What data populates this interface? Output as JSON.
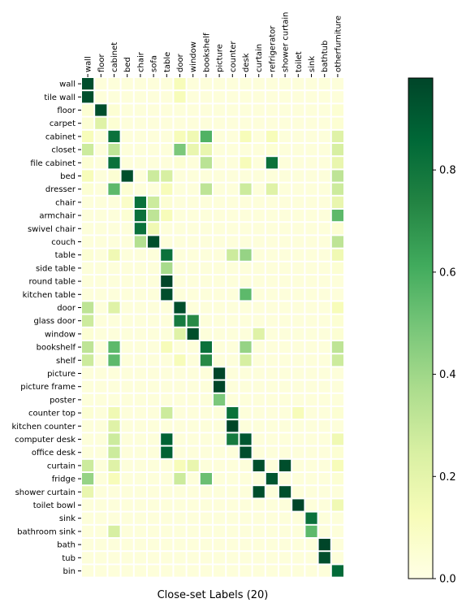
{
  "chart_data": {
    "type": "heatmap",
    "xlabel": "Close-set Labels (20)",
    "x_labels": [
      "wall",
      "floor",
      "cabinet",
      "bed",
      "chair",
      "sofa",
      "table",
      "door",
      "window",
      "bookshelf",
      "picture",
      "counter",
      "desk",
      "curtain",
      "refrigerator",
      "shower curtain",
      "toilet",
      "sink",
      "bathtub",
      "otherfurniture"
    ],
    "y_labels": [
      "wall",
      "tile wall",
      "floor",
      "carpet",
      "cabinet",
      "closet",
      "file cabinet",
      "bed",
      "dresser",
      "chair",
      "armchair",
      "swivel chair",
      "couch",
      "table",
      "side table",
      "round table",
      "kitchen table",
      "door",
      "glass door",
      "window",
      "bookshelf",
      "shelf",
      "picture",
      "picture frame",
      "poster",
      "counter top",
      "kitchen counter",
      "computer desk",
      "office desk",
      "curtain",
      "fridge",
      "shower curtain",
      "toilet bowl",
      "sink",
      "bathroom sink",
      "bath",
      "tub",
      "bin"
    ],
    "values": [
      [
        0.95,
        0.03,
        0.03,
        0.03,
        0.03,
        0.03,
        0.03,
        0.12,
        0.03,
        0.03,
        0.03,
        0.03,
        0.03,
        0.03,
        0.03,
        0.03,
        0.03,
        0.03,
        0.03,
        0.03
      ],
      [
        0.95,
        0.03,
        0.03,
        0.03,
        0.03,
        0.03,
        0.03,
        0.12,
        0.03,
        0.03,
        0.03,
        0.03,
        0.03,
        0.03,
        0.03,
        0.03,
        0.03,
        0.03,
        0.03,
        0.03
      ],
      [
        0.05,
        0.95,
        0.05,
        0.03,
        0.03,
        0.03,
        0.03,
        0.03,
        0.03,
        0.03,
        0.03,
        0.03,
        0.03,
        0.03,
        0.03,
        0.03,
        0.03,
        0.03,
        0.03,
        0.05
      ],
      [
        0.05,
        0.22,
        0.05,
        0.03,
        0.03,
        0.03,
        0.03,
        0.03,
        0.03,
        0.03,
        0.03,
        0.03,
        0.03,
        0.03,
        0.03,
        0.03,
        0.03,
        0.03,
        0.03,
        0.05
      ],
      [
        0.12,
        0.03,
        0.82,
        0.03,
        0.03,
        0.03,
        0.03,
        0.12,
        0.15,
        0.58,
        0.03,
        0.03,
        0.12,
        0.03,
        0.12,
        0.03,
        0.03,
        0.03,
        0.03,
        0.22
      ],
      [
        0.28,
        0.03,
        0.32,
        0.03,
        0.03,
        0.03,
        0.03,
        0.48,
        0.18,
        0.18,
        0.03,
        0.03,
        0.03,
        0.03,
        0.05,
        0.03,
        0.03,
        0.03,
        0.03,
        0.25
      ],
      [
        0.05,
        0.03,
        0.82,
        0.03,
        0.03,
        0.03,
        0.03,
        0.05,
        0.03,
        0.33,
        0.03,
        0.03,
        0.12,
        0.03,
        0.82,
        0.03,
        0.03,
        0.03,
        0.03,
        0.18
      ],
      [
        0.12,
        0.03,
        0.05,
        0.95,
        0.03,
        0.28,
        0.25,
        0.03,
        0.03,
        0.03,
        0.03,
        0.03,
        0.03,
        0.03,
        0.03,
        0.03,
        0.03,
        0.03,
        0.03,
        0.32
      ],
      [
        0.05,
        0.03,
        0.55,
        0.05,
        0.03,
        0.03,
        0.12,
        0.03,
        0.03,
        0.32,
        0.03,
        0.03,
        0.28,
        0.03,
        0.22,
        0.03,
        0.03,
        0.03,
        0.03,
        0.28
      ],
      [
        0.03,
        0.03,
        0.03,
        0.08,
        0.82,
        0.28,
        0.05,
        0.03,
        0.03,
        0.03,
        0.03,
        0.03,
        0.03,
        0.03,
        0.03,
        0.03,
        0.03,
        0.03,
        0.03,
        0.18
      ],
      [
        0.03,
        0.03,
        0.03,
        0.05,
        0.82,
        0.32,
        0.12,
        0.03,
        0.03,
        0.03,
        0.03,
        0.03,
        0.03,
        0.03,
        0.03,
        0.03,
        0.03,
        0.03,
        0.03,
        0.55
      ],
      [
        0.03,
        0.03,
        0.03,
        0.03,
        0.82,
        0.15,
        0.03,
        0.03,
        0.03,
        0.03,
        0.03,
        0.03,
        0.03,
        0.03,
        0.03,
        0.03,
        0.03,
        0.03,
        0.03,
        0.05
      ],
      [
        0.03,
        0.03,
        0.03,
        0.03,
        0.35,
        0.95,
        0.03,
        0.03,
        0.03,
        0.03,
        0.03,
        0.03,
        0.03,
        0.03,
        0.03,
        0.03,
        0.03,
        0.03,
        0.03,
        0.32
      ],
      [
        0.05,
        0.03,
        0.15,
        0.03,
        0.03,
        0.03,
        0.82,
        0.03,
        0.03,
        0.03,
        0.03,
        0.28,
        0.42,
        0.03,
        0.03,
        0.03,
        0.03,
        0.03,
        0.03,
        0.15
      ],
      [
        0.03,
        0.03,
        0.03,
        0.03,
        0.03,
        0.03,
        0.38,
        0.03,
        0.03,
        0.03,
        0.03,
        0.03,
        0.03,
        0.03,
        0.03,
        0.03,
        0.03,
        0.03,
        0.03,
        0.05
      ],
      [
        0.03,
        0.03,
        0.03,
        0.03,
        0.03,
        0.03,
        0.98,
        0.03,
        0.03,
        0.03,
        0.03,
        0.03,
        0.03,
        0.03,
        0.03,
        0.03,
        0.03,
        0.03,
        0.03,
        0.03
      ],
      [
        0.03,
        0.03,
        0.03,
        0.03,
        0.03,
        0.03,
        0.95,
        0.03,
        0.03,
        0.03,
        0.03,
        0.03,
        0.55,
        0.03,
        0.03,
        0.03,
        0.03,
        0.03,
        0.03,
        0.03
      ],
      [
        0.32,
        0.03,
        0.22,
        0.03,
        0.03,
        0.03,
        0.03,
        0.95,
        0.03,
        0.03,
        0.03,
        0.03,
        0.03,
        0.03,
        0.03,
        0.03,
        0.03,
        0.03,
        0.03,
        0.12
      ],
      [
        0.28,
        0.03,
        0.03,
        0.03,
        0.03,
        0.03,
        0.03,
        0.78,
        0.72,
        0.03,
        0.03,
        0.03,
        0.03,
        0.03,
        0.03,
        0.03,
        0.03,
        0.03,
        0.03,
        0.05
      ],
      [
        0.05,
        0.03,
        0.03,
        0.03,
        0.03,
        0.03,
        0.03,
        0.22,
        0.95,
        0.03,
        0.03,
        0.03,
        0.03,
        0.22,
        0.03,
        0.03,
        0.03,
        0.03,
        0.03,
        0.05
      ],
      [
        0.32,
        0.03,
        0.55,
        0.03,
        0.03,
        0.03,
        0.12,
        0.03,
        0.03,
        0.82,
        0.03,
        0.03,
        0.42,
        0.03,
        0.03,
        0.03,
        0.03,
        0.03,
        0.03,
        0.32
      ],
      [
        0.28,
        0.03,
        0.55,
        0.03,
        0.03,
        0.03,
        0.03,
        0.12,
        0.03,
        0.72,
        0.03,
        0.03,
        0.25,
        0.03,
        0.03,
        0.03,
        0.03,
        0.03,
        0.03,
        0.28
      ],
      [
        0.03,
        0.03,
        0.03,
        0.03,
        0.03,
        0.03,
        0.03,
        0.03,
        0.03,
        0.03,
        0.98,
        0.03,
        0.03,
        0.03,
        0.03,
        0.03,
        0.03,
        0.03,
        0.03,
        0.03
      ],
      [
        0.03,
        0.03,
        0.03,
        0.03,
        0.03,
        0.03,
        0.03,
        0.03,
        0.03,
        0.03,
        0.98,
        0.03,
        0.03,
        0.03,
        0.03,
        0.03,
        0.03,
        0.03,
        0.03,
        0.03
      ],
      [
        0.03,
        0.03,
        0.03,
        0.03,
        0.03,
        0.03,
        0.03,
        0.03,
        0.03,
        0.03,
        0.48,
        0.03,
        0.03,
        0.03,
        0.03,
        0.03,
        0.03,
        0.03,
        0.03,
        0.03
      ],
      [
        0.05,
        0.03,
        0.15,
        0.03,
        0.03,
        0.03,
        0.28,
        0.03,
        0.03,
        0.03,
        0.03,
        0.82,
        0.03,
        0.03,
        0.03,
        0.03,
        0.12,
        0.03,
        0.03,
        0.05
      ],
      [
        0.03,
        0.03,
        0.22,
        0.03,
        0.03,
        0.03,
        0.03,
        0.03,
        0.03,
        0.03,
        0.03,
        0.98,
        0.03,
        0.03,
        0.03,
        0.03,
        0.03,
        0.03,
        0.03,
        0.03
      ],
      [
        0.03,
        0.03,
        0.28,
        0.03,
        0.03,
        0.03,
        0.88,
        0.03,
        0.03,
        0.03,
        0.03,
        0.78,
        0.92,
        0.03,
        0.03,
        0.03,
        0.03,
        0.03,
        0.03,
        0.15
      ],
      [
        0.03,
        0.03,
        0.28,
        0.03,
        0.03,
        0.03,
        0.88,
        0.03,
        0.03,
        0.03,
        0.03,
        0.03,
        0.95,
        0.03,
        0.03,
        0.03,
        0.03,
        0.03,
        0.03,
        0.05
      ],
      [
        0.28,
        0.03,
        0.22,
        0.03,
        0.03,
        0.03,
        0.03,
        0.12,
        0.18,
        0.03,
        0.03,
        0.03,
        0.03,
        0.95,
        0.03,
        0.95,
        0.03,
        0.03,
        0.03,
        0.12
      ],
      [
        0.42,
        0.03,
        0.12,
        0.03,
        0.03,
        0.03,
        0.03,
        0.28,
        0.03,
        0.52,
        0.03,
        0.03,
        0.03,
        0.03,
        0.92,
        0.03,
        0.03,
        0.03,
        0.03,
        0.05
      ],
      [
        0.18,
        0.03,
        0.03,
        0.03,
        0.03,
        0.03,
        0.03,
        0.03,
        0.03,
        0.03,
        0.03,
        0.03,
        0.03,
        0.95,
        0.03,
        0.95,
        0.03,
        0.03,
        0.03,
        0.03
      ],
      [
        0.03,
        0.03,
        0.03,
        0.03,
        0.03,
        0.03,
        0.03,
        0.03,
        0.03,
        0.03,
        0.03,
        0.03,
        0.03,
        0.03,
        0.03,
        0.03,
        0.98,
        0.03,
        0.03,
        0.15
      ],
      [
        0.03,
        0.03,
        0.03,
        0.03,
        0.03,
        0.03,
        0.03,
        0.03,
        0.03,
        0.03,
        0.03,
        0.03,
        0.03,
        0.03,
        0.03,
        0.03,
        0.03,
        0.82,
        0.03,
        0.03
      ],
      [
        0.03,
        0.03,
        0.25,
        0.03,
        0.03,
        0.03,
        0.03,
        0.03,
        0.03,
        0.03,
        0.03,
        0.03,
        0.03,
        0.03,
        0.03,
        0.03,
        0.03,
        0.55,
        0.03,
        0.03
      ],
      [
        0.03,
        0.03,
        0.03,
        0.03,
        0.03,
        0.03,
        0.03,
        0.03,
        0.03,
        0.03,
        0.03,
        0.03,
        0.03,
        0.03,
        0.03,
        0.03,
        0.03,
        0.03,
        0.98,
        0.03
      ],
      [
        0.03,
        0.03,
        0.03,
        0.03,
        0.03,
        0.03,
        0.03,
        0.03,
        0.03,
        0.03,
        0.03,
        0.03,
        0.03,
        0.03,
        0.03,
        0.03,
        0.03,
        0.03,
        0.95,
        0.03
      ],
      [
        0.03,
        0.03,
        0.03,
        0.03,
        0.03,
        0.03,
        0.03,
        0.03,
        0.03,
        0.03,
        0.03,
        0.03,
        0.03,
        0.03,
        0.03,
        0.03,
        0.03,
        0.03,
        0.03,
        0.85
      ]
    ],
    "zlim": [
      0.0,
      0.98
    ],
    "colorbar_ticks": [
      "0.0",
      "0.2",
      "0.4",
      "0.6",
      "0.8"
    ],
    "colormap": "YlGn",
    "colors": {
      "low": "#ffffe5",
      "high": "#004529"
    },
    "grid": false,
    "legend": "colorbar-right"
  }
}
